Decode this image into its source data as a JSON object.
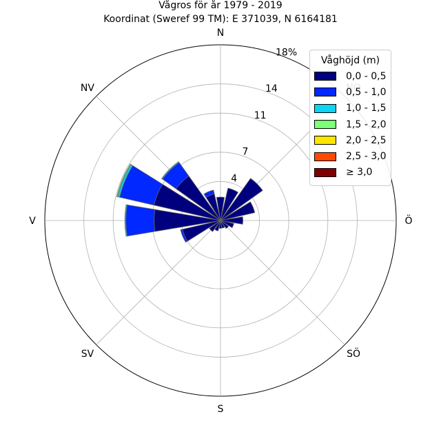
{
  "title": {
    "line1": "Vågros för år 1979 - 2019",
    "line2": "Koordinat (Sweref 99 TM): E 371039, N 6164181"
  },
  "legend": {
    "title": "Våghöjd (m)",
    "entries": [
      {
        "label": "0,0 - 0,5",
        "color": "#00007f"
      },
      {
        "label": "0,5 - 1,0",
        "color": "#0028ff"
      },
      {
        "label": "1,0 - 1,5",
        "color": "#0cd4f2"
      },
      {
        "label": "1,5 - 2,0",
        "color": "#7dff7a"
      },
      {
        "label": "2,0 - 2,5",
        "color": "#ffe500"
      },
      {
        "label": "2,5 - 3,0",
        "color": "#ff4a00"
      },
      {
        "label": "≥ 3,0",
        "color": "#7f0000"
      }
    ]
  },
  "chart_data": {
    "type": "windrose",
    "title": "Vågros för år 1979 - 2019",
    "subtitle": "Koordinat (Sweref 99 TM): E 371039, N 6164181",
    "direction_labels": [
      {
        "label": "N",
        "angle": 0
      },
      {
        "label": "NV",
        "angle": 315
      },
      {
        "label": "V",
        "angle": 270
      },
      {
        "label": "SV",
        "angle": 225
      },
      {
        "label": "S",
        "angle": 180
      },
      {
        "label": "SÖ",
        "angle": 135
      },
      {
        "label": "Ö",
        "angle": 90
      },
      {
        "label": "NO",
        "angle": 45
      }
    ],
    "radial_ticks": [
      {
        "value": 4,
        "label": "4"
      },
      {
        "value": 7,
        "label": "7"
      },
      {
        "value": 11,
        "label": "11"
      },
      {
        "value": 14,
        "label": "14"
      },
      {
        "value": 18,
        "label": "18%"
      }
    ],
    "r_max": 18,
    "sector_width_deg": 19,
    "series_names": [
      "0,0 - 0,5",
      "0,5 - 1,0",
      "1,0 - 1,5",
      "1,5 - 2,0",
      "2,0 - 2,5",
      "2,5 - 3,0",
      "≥ 3,0"
    ],
    "sectors": [
      {
        "direction": 0,
        "values": [
          2.4,
          0,
          0,
          0,
          0,
          0,
          0
        ]
      },
      {
        "direction": 22.5,
        "values": [
          3.4,
          0,
          0,
          0,
          0,
          0,
          0
        ]
      },
      {
        "direction": 45,
        "values": [
          5.3,
          0,
          0,
          0,
          0,
          0,
          0
        ]
      },
      {
        "direction": 67.5,
        "values": [
          3.6,
          0,
          0,
          0,
          0,
          0,
          0
        ]
      },
      {
        "direction": 90,
        "values": [
          2.3,
          0,
          0,
          0,
          0,
          0,
          0
        ]
      },
      {
        "direction": 112.5,
        "values": [
          1.4,
          0,
          0,
          0,
          0,
          0,
          0
        ]
      },
      {
        "direction": 135,
        "values": [
          1.0,
          0,
          0,
          0,
          0,
          0,
          0
        ]
      },
      {
        "direction": 157.5,
        "values": [
          0.8,
          0,
          0,
          0,
          0,
          0,
          0
        ]
      },
      {
        "direction": 180,
        "values": [
          0.8,
          0,
          0,
          0,
          0,
          0,
          0
        ]
      },
      {
        "direction": 202.5,
        "values": [
          1.1,
          0,
          0,
          0,
          0,
          0,
          0
        ]
      },
      {
        "direction": 225,
        "values": [
          1.4,
          0,
          0,
          0,
          0,
          0,
          0
        ]
      },
      {
        "direction": 247.5,
        "values": [
          4.0,
          0.2,
          0,
          0,
          0,
          0,
          0
        ]
      },
      {
        "direction": 270,
        "values": [
          6.8,
          2.9,
          0.1,
          0,
          0,
          0,
          0
        ]
      },
      {
        "direction": 292.5,
        "values": [
          7.0,
          3.6,
          0.2,
          0.1,
          0,
          0,
          0
        ]
      },
      {
        "direction": 315,
        "values": [
          5.6,
          1.7,
          0.1,
          0,
          0,
          0,
          0
        ]
      },
      {
        "direction": 337.5,
        "values": [
          2.8,
          0.4,
          0,
          0,
          0,
          0,
          0
        ]
      }
    ]
  }
}
